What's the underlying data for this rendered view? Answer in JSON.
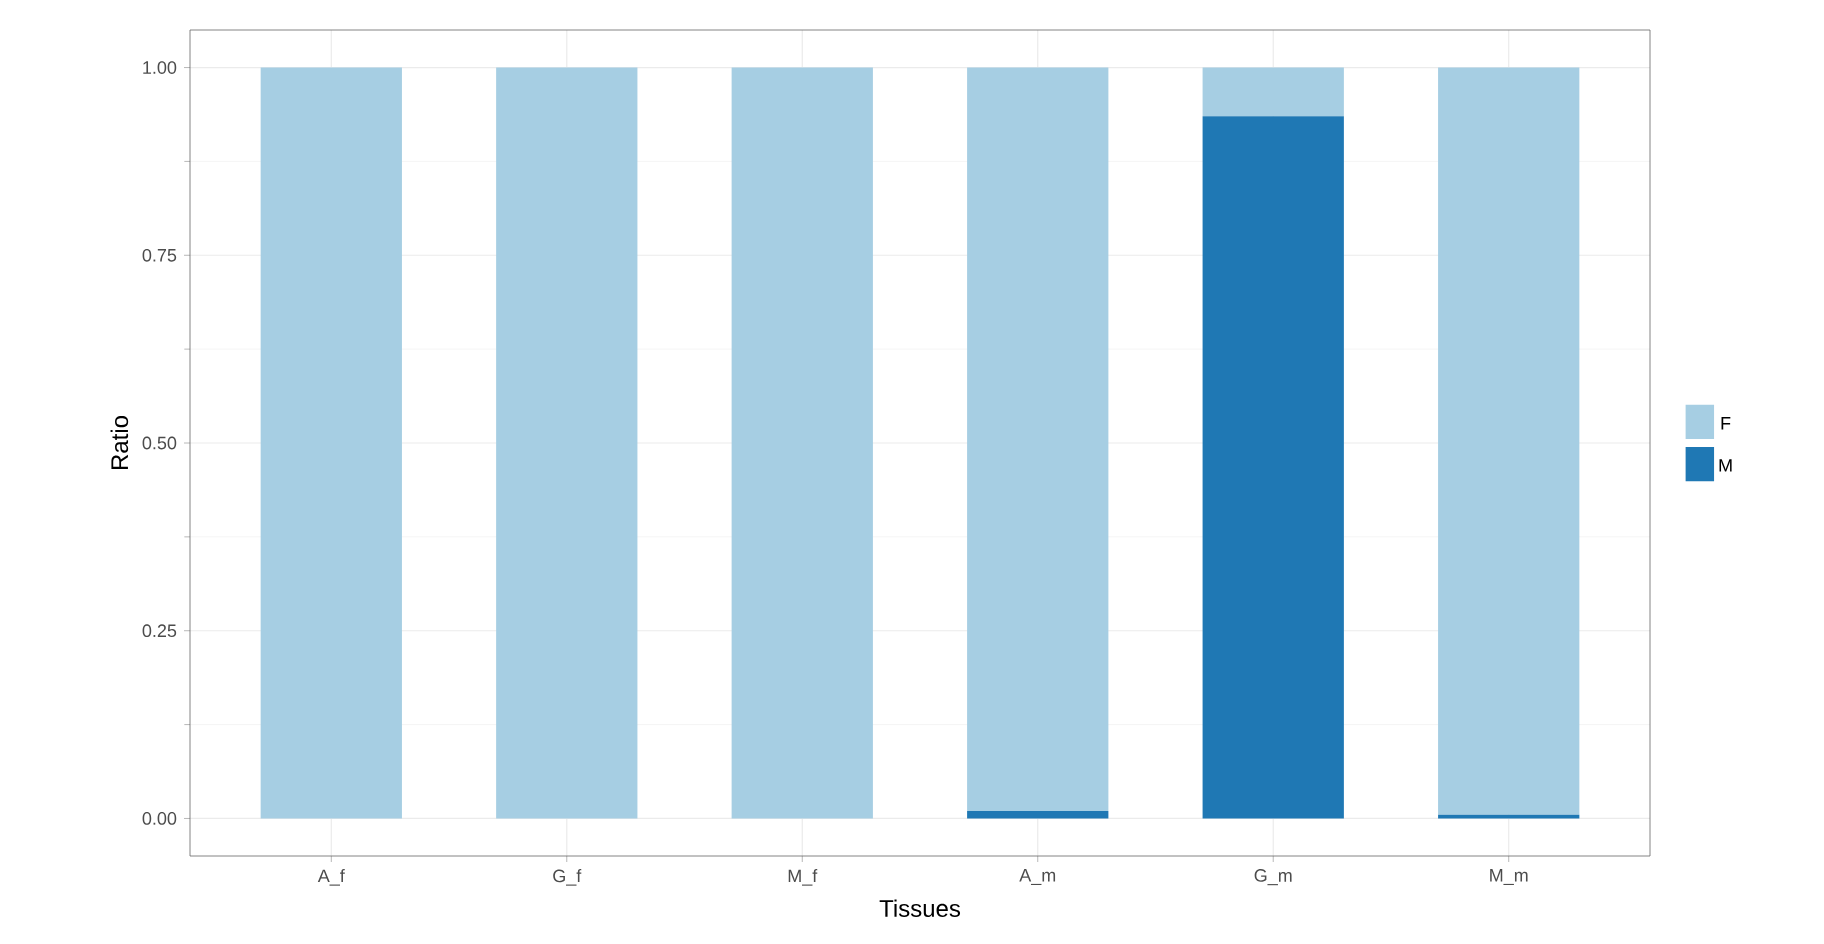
{
  "chart_data": {
    "type": "bar",
    "stacked": true,
    "xlabel": "Tissues",
    "ylabel": "Ratio",
    "categories": [
      "A_f",
      "G_f",
      "M_f",
      "A_m",
      "G_m",
      "M_m"
    ],
    "series": [
      {
        "name": "M",
        "color": "#1f78b4",
        "values": [
          0,
          0,
          0,
          0.01,
          0.935,
          0.005
        ]
      },
      {
        "name": "F",
        "color": "#a6cee3",
        "values": [
          1,
          1,
          1,
          0.99,
          0.065,
          0.995
        ]
      }
    ],
    "ylim": [
      -0.05,
      1.05
    ],
    "yticks": [
      {
        "value": 0,
        "label": "0.00"
      },
      {
        "value": 0.25,
        "label": "0.25"
      },
      {
        "value": 0.5,
        "label": "0.50"
      },
      {
        "value": 0.75,
        "label": "0.75"
      },
      {
        "value": 1,
        "label": "1.00"
      }
    ],
    "grid": true,
    "legend": "right"
  }
}
